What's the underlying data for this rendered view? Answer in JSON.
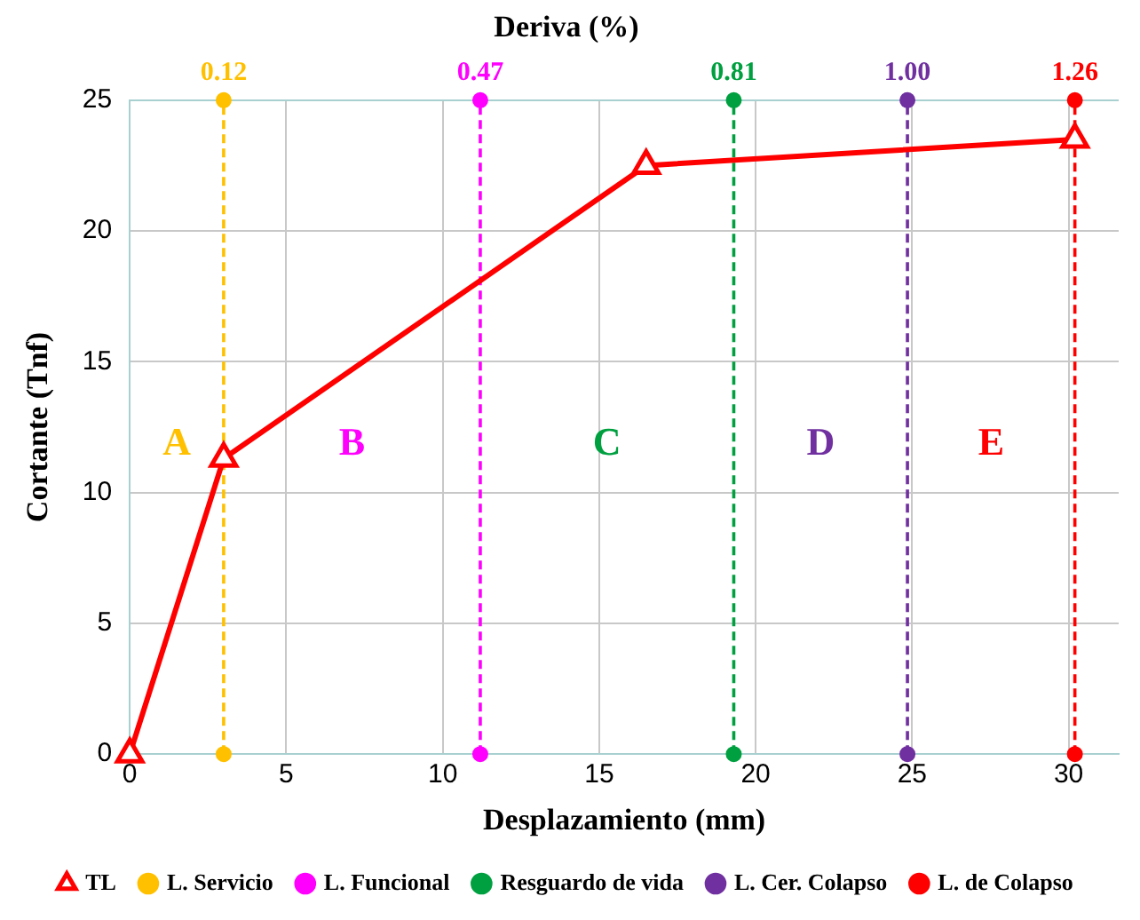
{
  "chart_data": {
    "type": "line",
    "title": "Deriva (%)",
    "xlabel": "Desplazamiento (mm)",
    "ylabel": "Cortante (Tnf)",
    "xlim": [
      0,
      31.6
    ],
    "xticks": [
      0,
      5,
      10,
      15,
      20,
      25,
      30
    ],
    "ylim": [
      0,
      25
    ],
    "yticks": [
      0,
      5,
      10,
      15,
      20,
      25
    ],
    "grid": true,
    "legend": "bottom",
    "series": [
      {
        "name": "TL",
        "color": "#ff0000",
        "x": [
          0,
          3.0,
          16.5,
          30.2
        ],
        "values": [
          0,
          11.3,
          22.5,
          23.5
        ],
        "marker": "triangle",
        "line_style": "solid"
      },
      {
        "name": "L. Servicio",
        "color": "#ffc000",
        "x": [
          3.0,
          3.0
        ],
        "values": [
          0,
          25
        ],
        "marker": "circle",
        "line_style": "dashed"
      },
      {
        "name": "L. Funcional",
        "color": "#ff00ff",
        "x": [
          11.2,
          11.2
        ],
        "values": [
          0,
          25
        ],
        "marker": "circle",
        "line_style": "dashed"
      },
      {
        "name": "Resguardo de vida",
        "color": "#00a040",
        "x": [
          19.3,
          19.3
        ],
        "values": [
          0,
          25
        ],
        "marker": "circle",
        "line_style": "dashed"
      },
      {
        "name": "L. Cer. Colapso",
        "color": "#7030a0",
        "x": [
          24.85,
          24.85
        ],
        "values": [
          0,
          25
        ],
        "marker": "circle",
        "line_style": "dashed"
      },
      {
        "name": "L. de Colapso",
        "color": "#ff0000",
        "x": [
          30.2,
          30.2
        ],
        "values": [
          0,
          25
        ],
        "marker": "circle",
        "line_style": "dashed"
      }
    ],
    "annotations": [
      {
        "text": "0.12",
        "x": 3.0,
        "y": 25
      },
      {
        "text": "0.47",
        "x": 11.2,
        "y": 25
      },
      {
        "text": "0.81",
        "x": 19.3,
        "y": 25
      },
      {
        "text": "1.00",
        "x": 24.85,
        "y": 25
      },
      {
        "text": "1.26",
        "x": 30.2,
        "y": 25
      },
      "A",
      "B",
      "C",
      "D",
      "E"
    ]
  }
}
